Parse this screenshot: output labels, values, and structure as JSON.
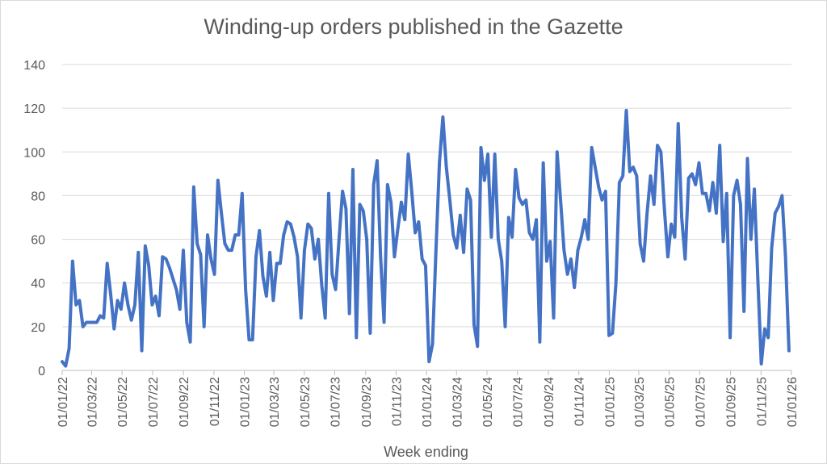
{
  "chart_data": {
    "type": "line",
    "title": "Winding-up orders published in the Gazette",
    "xlabel": "Week ending",
    "ylabel": "",
    "ylim": [
      0,
      140
    ],
    "yticks": [
      0,
      20,
      40,
      60,
      80,
      100,
      120,
      140
    ],
    "grid": true,
    "legend": "none",
    "x_range": [
      "2022-01-01",
      "2026-01-01"
    ],
    "x_tick_labels": [
      "01/01/22",
      "01/03/22",
      "01/05/22",
      "01/07/22",
      "01/09/22",
      "01/11/22",
      "01/01/23",
      "01/03/23",
      "01/05/23",
      "01/07/23",
      "01/09/23",
      "01/11/23",
      "01/01/24",
      "01/03/24",
      "01/05/24",
      "01/07/24",
      "01/09/24",
      "01/11/24",
      "01/01/25",
      "01/03/25",
      "01/05/25",
      "01/07/25",
      "01/09/25",
      "01/11/25",
      "01/01/26"
    ],
    "color": "#4472C4",
    "series": [
      {
        "values": [
          4,
          2,
          10,
          50,
          30,
          32,
          20,
          22,
          22,
          22,
          22,
          25,
          24,
          49,
          35,
          19,
          32,
          28,
          40,
          30,
          23,
          30,
          54,
          9,
          57,
          48,
          30,
          34,
          25,
          52,
          51,
          47,
          42,
          37,
          28,
          55,
          22,
          13,
          84,
          58,
          53,
          20,
          62,
          51,
          44,
          87,
          72,
          58,
          55,
          55,
          62,
          62,
          81,
          37,
          14,
          14,
          52,
          64,
          43,
          34,
          54,
          32,
          49,
          49,
          62,
          68,
          67,
          61,
          52,
          24,
          55,
          67,
          65,
          51,
          60,
          39,
          24,
          81,
          44,
          37,
          60,
          82,
          74,
          26,
          92,
          15,
          76,
          73,
          60,
          17,
          85,
          96,
          52,
          22,
          85,
          77,
          52,
          65,
          77,
          69,
          99,
          82,
          63,
          68,
          51,
          48,
          4,
          12,
          55,
          95,
          116,
          93,
          78,
          62,
          56,
          71,
          54,
          83,
          78,
          21,
          11,
          102,
          87,
          99,
          61,
          99,
          60,
          50,
          20,
          70,
          61,
          92,
          79,
          76,
          78,
          63,
          60,
          69,
          13,
          95,
          50,
          59,
          24,
          100,
          78,
          55,
          44,
          51,
          38,
          55,
          61,
          69,
          60,
          102,
          93,
          84,
          78,
          82,
          16,
          17,
          40,
          86,
          89,
          119,
          91,
          93,
          89,
          58,
          50,
          72,
          89,
          76,
          103,
          100,
          74,
          52,
          67,
          61,
          113,
          70,
          51,
          88,
          90,
          85,
          95,
          81,
          81,
          73,
          86,
          72,
          103,
          59,
          81,
          15,
          80,
          87,
          76,
          27,
          97,
          60,
          83,
          42,
          3,
          19,
          15,
          56,
          72,
          75,
          80,
          52,
          9
        ],
        "first_week": "2022-01-01",
        "last_week": "2025-12-27"
      }
    ]
  }
}
